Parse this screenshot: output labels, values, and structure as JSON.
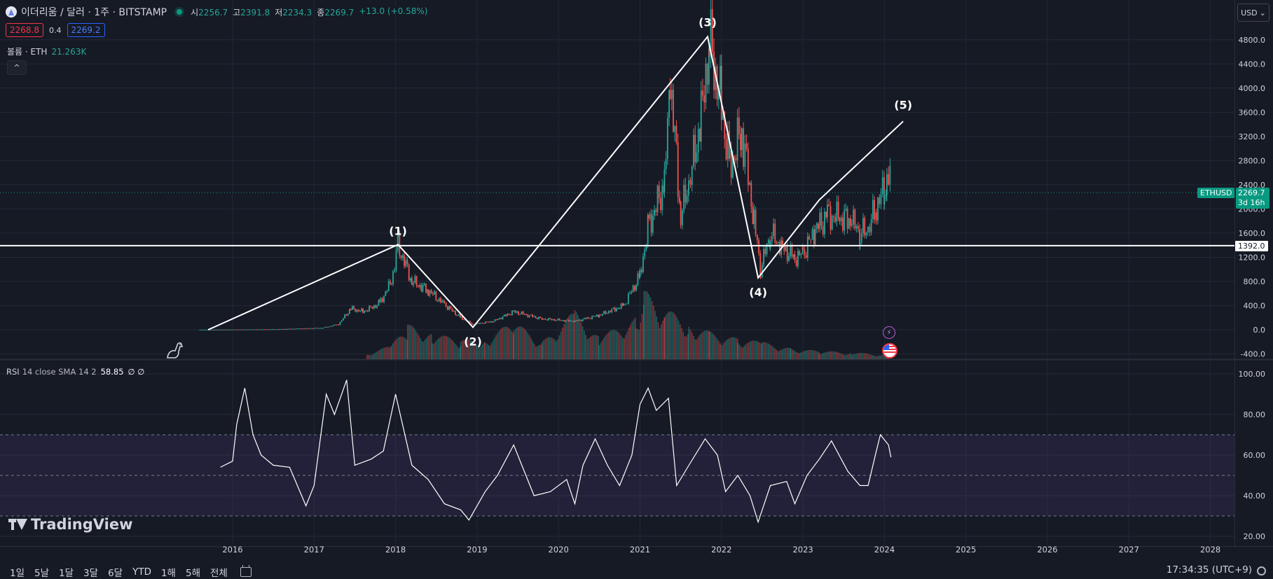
{
  "header": {
    "symbol": "이더리움 / 달러 · 1주 · BITSTAMP",
    "ohlc": [
      {
        "key": "시",
        "value": "2256.7"
      },
      {
        "key": "고",
        "value": "2391.8"
      },
      {
        "key": "저",
        "value": "2234.3"
      },
      {
        "key": "종",
        "value": "2269.7"
      }
    ],
    "change": "+13.0 (+0.58%)",
    "bid": "2268.8",
    "spread": "0.4",
    "ask": "2269.2",
    "volume_label": "볼륨 · ETH",
    "volume_value": "21.263K",
    "collapse_glyph": "^",
    "currency_label": "USD",
    "currency_arrow": "⌄"
  },
  "rsi_legend": {
    "name": "RSI",
    "params": "14 close SMA 14 2",
    "value": "58.85",
    "extra": "∅ ∅"
  },
  "price_tags": {
    "symbol": "ETHUSD",
    "price": "2269.7",
    "countdown": "3d 16h",
    "hline": "1392.0"
  },
  "logo": "TradingView",
  "bottom_bar": {
    "ranges": [
      "1일",
      "5날",
      "1달",
      "3달",
      "6달",
      "YTD",
      "1해",
      "5해",
      "전체"
    ],
    "clock": "17:34:35 (UTC+9)"
  },
  "colors": {
    "up": "#26a69a",
    "down": "#ef5350",
    "background": "#161a25",
    "rsi": "#ffffff",
    "rsi_band": "#7e57c2"
  },
  "chart_data": {
    "type": "candlestick",
    "symbol": "ETHUSD",
    "interval": "1W",
    "y_ticks": [
      "4800.0",
      "4400.0",
      "4000.0",
      "3600.0",
      "3200.0",
      "2800.0",
      "2400.0",
      "2000.0",
      "1600.0",
      "1200.0",
      "800.0",
      "400.0",
      "0.0",
      "-400.0"
    ],
    "x_ticks": [
      "2016",
      "2017",
      "2018",
      "2019",
      "2020",
      "2021",
      "2022",
      "2023",
      "2024",
      "2025",
      "2026",
      "2027",
      "2028"
    ],
    "price_path": [
      [
        "2015.6",
        0
      ],
      [
        "2016.5",
        8
      ],
      [
        "2017.1",
        30
      ],
      [
        "2017.3",
        90
      ],
      [
        "2017.45",
        350
      ],
      [
        "2017.6",
        300
      ],
      [
        "2017.8",
        430
      ],
      [
        "2017.95",
        800
      ],
      [
        "2018.03",
        1400
      ],
      [
        "2018.2",
        800
      ],
      [
        "2018.4",
        650
      ],
      [
        "2018.6",
        420
      ],
      [
        "2018.8",
        200
      ],
      [
        "2018.95",
        90
      ],
      [
        "2019.2",
        140
      ],
      [
        "2019.45",
        300
      ],
      [
        "2019.8",
        180
      ],
      [
        "2020.2",
        140
      ],
      [
        "2020.5",
        240
      ],
      [
        "2020.8",
        400
      ],
      [
        "2021.0",
        900
      ],
      [
        "2021.1",
        1700
      ],
      [
        "2021.3",
        2400
      ],
      [
        "2021.37",
        4150
      ],
      [
        "2021.5",
        1900
      ],
      [
        "2021.6",
        2400
      ],
      [
        "2021.75",
        3500
      ],
      [
        "2021.85",
        4800
      ],
      [
        "2022.0",
        3700
      ],
      [
        "2022.1",
        2700
      ],
      [
        "2022.25",
        3300
      ],
      [
        "2022.4",
        1800
      ],
      [
        "2022.48",
        1000
      ],
      [
        "2022.6",
        1600
      ],
      [
        "2022.75",
        1350
      ],
      [
        "2022.9",
        1200
      ],
      [
        "2023.0",
        1250
      ],
      [
        "2023.15",
        1650
      ],
      [
        "2023.3",
        1900
      ],
      [
        "2023.45",
        1850
      ],
      [
        "2023.6",
        1800
      ],
      [
        "2023.7",
        1600
      ],
      [
        "2023.8",
        1650
      ],
      [
        "2023.9",
        2050
      ],
      [
        "2024.0",
        2300
      ],
      [
        "2024.03",
        2700
      ],
      [
        "2024.08",
        2269.7
      ]
    ],
    "wave_labels": [
      "(1)",
      "(2)",
      "(3)",
      "(4)",
      "(5)"
    ],
    "wave_points": [
      [
        "2015.7",
        0
      ],
      [
        "2018.03",
        1410
      ],
      [
        "2018.95",
        40
      ],
      [
        "2021.83",
        4850
      ],
      [
        "2022.45",
        860
      ],
      [
        "2023.2",
        2150
      ]
    ],
    "wave_line_end": [
      "2024.23",
      3450
    ],
    "horizontal_line": 1392.0,
    "current_price": 2269.7,
    "rsi": {
      "y_ticks": [
        "100.00",
        "80.00",
        "60.00",
        "40.00",
        "20.00"
      ],
      "upper_band": 70,
      "middle_band": 50,
      "lower_band": 30,
      "last_value": 58.85,
      "path": [
        [
          "2015.85",
          54
        ],
        [
          "2016.0",
          57
        ],
        [
          "2016.05",
          75
        ],
        [
          "2016.15",
          93
        ],
        [
          "2016.25",
          70
        ],
        [
          "2016.35",
          60
        ],
        [
          "2016.5",
          55
        ],
        [
          "2016.7",
          54
        ],
        [
          "2016.9",
          35
        ],
        [
          "2017.0",
          45
        ],
        [
          "2017.15",
          90
        ],
        [
          "2017.25",
          80
        ],
        [
          "2017.4",
          97
        ],
        [
          "2017.5",
          55
        ],
        [
          "2017.7",
          58
        ],
        [
          "2017.85",
          62
        ],
        [
          "2018.0",
          90
        ],
        [
          "2018.2",
          55
        ],
        [
          "2018.4",
          48
        ],
        [
          "2018.6",
          36
        ],
        [
          "2018.8",
          33
        ],
        [
          "2018.9",
          28
        ],
        [
          "2019.1",
          42
        ],
        [
          "2019.25",
          50
        ],
        [
          "2019.45",
          65
        ],
        [
          "2019.7",
          40
        ],
        [
          "2019.9",
          42
        ],
        [
          "2020.1",
          48
        ],
        [
          "2020.2",
          36
        ],
        [
          "2020.3",
          55
        ],
        [
          "2020.45",
          68
        ],
        [
          "2020.6",
          55
        ],
        [
          "2020.75",
          45
        ],
        [
          "2020.9",
          60
        ],
        [
          "2021.0",
          85
        ],
        [
          "2021.1",
          93
        ],
        [
          "2021.2",
          82
        ],
        [
          "2021.35",
          88
        ],
        [
          "2021.45",
          45
        ],
        [
          "2021.6",
          55
        ],
        [
          "2021.8",
          68
        ],
        [
          "2021.95",
          60
        ],
        [
          "2022.05",
          42
        ],
        [
          "2022.2",
          50
        ],
        [
          "2022.35",
          40
        ],
        [
          "2022.45",
          27
        ],
        [
          "2022.6",
          45
        ],
        [
          "2022.8",
          47
        ],
        [
          "2022.9",
          36
        ],
        [
          "2023.05",
          50
        ],
        [
          "2023.2",
          58
        ],
        [
          "2023.35",
          67
        ],
        [
          "2023.55",
          52
        ],
        [
          "2023.7",
          45
        ],
        [
          "2023.8",
          45
        ],
        [
          "2023.9",
          62
        ],
        [
          "2023.95",
          70
        ],
        [
          "2024.05",
          65
        ],
        [
          "2024.08",
          58.85
        ]
      ]
    },
    "volume": {
      "unit": "ETH",
      "last": "21.263K",
      "bars": [
        [
          "2017.65",
          8
        ],
        [
          "2017.95",
          20
        ],
        [
          "2018.15",
          50
        ],
        [
          "2018.45",
          38
        ],
        [
          "2018.8",
          28
        ],
        [
          "2019.1",
          30
        ],
        [
          "2019.45",
          55
        ],
        [
          "2019.8",
          25
        ],
        [
          "2020.2",
          70
        ],
        [
          "2020.5",
          32
        ],
        [
          "2020.95",
          60
        ],
        [
          "2021.05",
          100
        ],
        [
          "2021.3",
          75
        ],
        [
          "2021.6",
          52
        ],
        [
          "2021.85",
          40
        ],
        [
          "2022.2",
          30
        ],
        [
          "2022.5",
          25
        ],
        [
          "2022.85",
          16
        ],
        [
          "2023.2",
          12
        ],
        [
          "2023.6",
          10
        ],
        [
          "2024.05",
          6
        ]
      ]
    }
  }
}
